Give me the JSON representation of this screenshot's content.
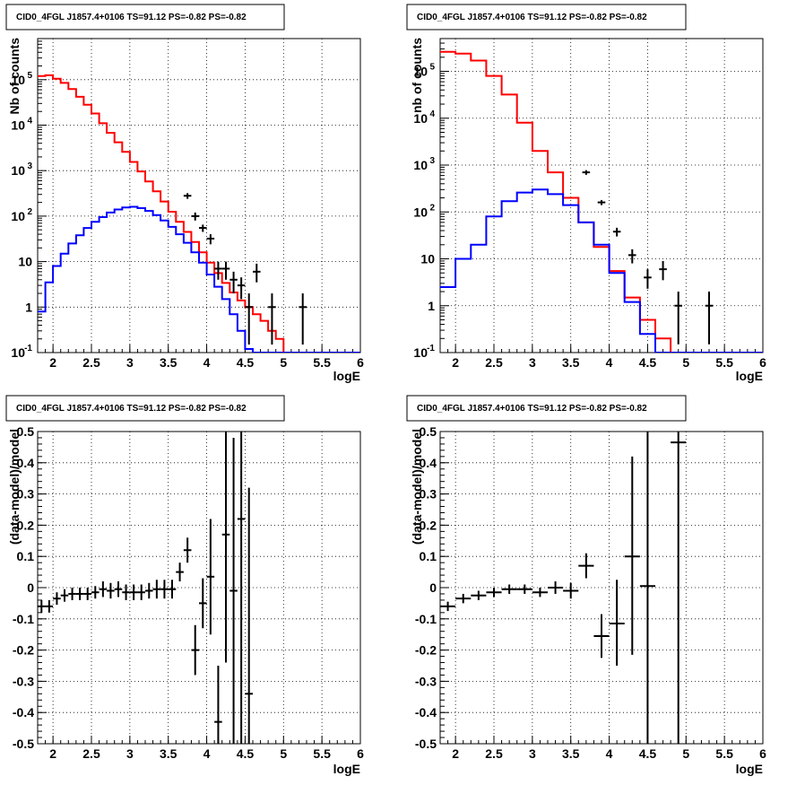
{
  "chart_data": [
    {
      "type": "line",
      "title": "CID0_4FGL J1857.4+0106 TS=91.12 PS=-0.82 PS=-0.82",
      "xlabel": "logE",
      "ylabel": "Nb of counts",
      "xlim": [
        1.8,
        6
      ],
      "ylim": [
        0.1,
        800000
      ],
      "yscale": "log",
      "grid": true,
      "xticks": [
        "2",
        "2.5",
        "3",
        "3.5",
        "4",
        "4.5",
        "5",
        "5.5",
        "6"
      ],
      "yticks": [
        {
          "v": 0.1,
          "label": "10",
          "sup": "-1"
        },
        {
          "v": 1,
          "label": "1"
        },
        {
          "v": 10,
          "label": "10"
        },
        {
          "v": 100,
          "label": "10",
          "sup": "2"
        },
        {
          "v": 1000,
          "label": "10",
          "sup": "3"
        },
        {
          "v": 10000,
          "label": "10",
          "sup": "4"
        },
        {
          "v": 100000,
          "label": "10",
          "sup": "5"
        }
      ],
      "bin_edges": [
        1.8,
        1.9,
        2.0,
        2.1,
        2.2,
        2.3,
        2.4,
        2.5,
        2.6,
        2.7,
        2.8,
        2.9,
        3.0,
        3.1,
        3.2,
        3.3,
        3.4,
        3.5,
        3.6,
        3.7,
        3.8,
        3.9,
        4.0,
        4.1,
        4.2,
        4.3,
        4.4,
        4.5,
        4.6,
        4.7,
        4.8,
        4.9,
        5.0,
        5.1,
        5.2,
        5.3,
        5.4,
        5.5,
        5.6,
        5.7,
        5.8,
        5.9,
        6.0
      ],
      "series": [
        {
          "color": "#ff0000",
          "values": [
            120000,
            125000,
            105000,
            85000,
            62000,
            42000,
            28000,
            18000,
            11000,
            6800,
            4200,
            2600,
            1550,
            960,
            580,
            350,
            210,
            125,
            75,
            45,
            27,
            16,
            9.5,
            5.6,
            3.4,
            2.1,
            1.4,
            1.0,
            0.7,
            0.5,
            0.3,
            0.2,
            0.1,
            0.1,
            0.1,
            0.1,
            0.1,
            0.1,
            0.1,
            0.1,
            0.1,
            0.1
          ]
        },
        {
          "color": "#0000ff",
          "values": [
            0.8,
            3.5,
            8,
            15,
            25,
            38,
            55,
            75,
            95,
            120,
            140,
            155,
            160,
            150,
            130,
            105,
            80,
            58,
            40,
            26,
            16,
            9.5,
            5.2,
            2.8,
            1.5,
            0.7,
            0.3,
            0.12,
            0.1,
            0.1,
            0.1,
            0.1,
            0.1,
            0.1,
            0.1,
            0.1,
            0.1,
            0.1,
            0.1,
            0.1,
            0.1,
            0.1
          ]
        }
      ],
      "points": {
        "x": [
          3.75,
          3.85,
          3.95,
          4.05,
          4.15,
          4.25,
          4.35,
          4.45,
          4.55,
          4.65,
          4.85,
          5.25
        ],
        "y": [
          280,
          100,
          55,
          32,
          7,
          7,
          4,
          3,
          1,
          6,
          1,
          1
        ],
        "ylo": [
          240,
          80,
          45,
          24,
          4,
          4,
          2,
          1.5,
          0.15,
          3.5,
          0.15,
          0.15
        ],
        "yhi": [
          320,
          120,
          65,
          40,
          10,
          10,
          6,
          4.5,
          2,
          9,
          2,
          2
        ]
      }
    },
    {
      "type": "line",
      "title": "CID0_4FGL J1857.4+0106 TS=91.12 PS=-0.82 PS=-0.82",
      "xlabel": "logE",
      "ylabel": "nb of counts",
      "xlim": [
        1.8,
        6
      ],
      "ylim": [
        0.1,
        500000
      ],
      "yscale": "log",
      "grid": true,
      "xticks": [
        "2",
        "2.5",
        "3",
        "3.5",
        "4",
        "4.5",
        "5",
        "5.5",
        "6"
      ],
      "yticks": [
        {
          "v": 0.1,
          "label": "10",
          "sup": "-1"
        },
        {
          "v": 1,
          "label": "1"
        },
        {
          "v": 10,
          "label": "10"
        },
        {
          "v": 100,
          "label": "10",
          "sup": "2"
        },
        {
          "v": 1000,
          "label": "10",
          "sup": "3"
        },
        {
          "v": 10000,
          "label": "10",
          "sup": "4"
        },
        {
          "v": 100000,
          "label": "10",
          "sup": "5"
        }
      ],
      "bin_edges": [
        1.8,
        2.0,
        2.2,
        2.4,
        2.6,
        2.8,
        3.0,
        3.2,
        3.4,
        3.6,
        3.8,
        4.0,
        4.2,
        4.4,
        4.6,
        4.8,
        5.0,
        5.2,
        5.4,
        5.6,
        5.8,
        6.0
      ],
      "series": [
        {
          "color": "#ff0000",
          "values": [
            260000,
            240000,
            170000,
            80000,
            32000,
            8000,
            2000,
            700,
            200,
            60,
            18,
            5.5,
            1.5,
            0.5,
            0.2,
            0.1,
            0.1,
            0.1,
            0.1,
            0.1,
            0.1
          ]
        },
        {
          "color": "#0000ff",
          "values": [
            2.5,
            10,
            20,
            80,
            170,
            260,
            300,
            240,
            140,
            60,
            20,
            5,
            1.2,
            0.25,
            0.1,
            0.1,
            0.1,
            0.1,
            0.1,
            0.1,
            0.1
          ]
        }
      ],
      "points": {
        "x": [
          3.7,
          3.9,
          4.1,
          4.3,
          4.5,
          4.7,
          4.9,
          5.3
        ],
        "y": [
          700,
          160,
          38,
          12,
          4,
          6,
          1,
          1
        ],
        "ylo": [
          620,
          140,
          30,
          8,
          2.3,
          3.5,
          0.15,
          0.15
        ],
        "yhi": [
          780,
          180,
          46,
          16,
          6,
          9,
          2,
          2
        ]
      }
    },
    {
      "type": "scatter",
      "title": "CID0_4FGL J1857.4+0106 TS=91.12 PS=-0.82 PS=-0.82",
      "xlabel": "logE",
      "ylabel": "(data-model)/model",
      "xlim": [
        1.8,
        6
      ],
      "ylim": [
        -0.5,
        0.5
      ],
      "grid": true,
      "xticks": [
        "2",
        "2.5",
        "3",
        "3.5",
        "4",
        "4.5",
        "5",
        "5.5",
        "6"
      ],
      "yticks": [
        "-0.5",
        "-0.4",
        "-0.3",
        "-0.2",
        "-0.1",
        "0",
        "0.1",
        "0.2",
        "0.3",
        "0.4",
        "0.5"
      ],
      "xerr": 0.05,
      "points": {
        "x": [
          1.85,
          1.95,
          2.05,
          2.15,
          2.25,
          2.35,
          2.45,
          2.55,
          2.65,
          2.75,
          2.85,
          2.95,
          3.05,
          3.15,
          3.25,
          3.35,
          3.45,
          3.55,
          3.65,
          3.75,
          3.85,
          3.95,
          4.05,
          4.15,
          4.25,
          4.35,
          4.45,
          4.55
        ],
        "y": [
          -0.06,
          -0.06,
          -0.035,
          -0.025,
          -0.02,
          -0.02,
          -0.02,
          -0.015,
          -0.005,
          -0.01,
          -0.005,
          -0.015,
          -0.015,
          -0.015,
          -0.01,
          -0.005,
          -0.005,
          -0.005,
          0.05,
          0.12,
          -0.2,
          -0.05,
          0.035,
          -0.43,
          0.17,
          -0.01,
          0.22,
          -0.34
        ],
        "ylo": [
          -0.08,
          -0.08,
          -0.055,
          -0.045,
          -0.04,
          -0.04,
          -0.04,
          -0.035,
          -0.03,
          -0.035,
          -0.03,
          -0.04,
          -0.04,
          -0.04,
          -0.035,
          -0.035,
          -0.035,
          -0.035,
          0.02,
          0.08,
          -0.28,
          -0.13,
          -0.15,
          -0.5,
          -0.24,
          -0.5,
          -0.5,
          -0.5
        ],
        "yhi": [
          -0.04,
          -0.04,
          -0.015,
          -0.005,
          0,
          0,
          0,
          0.005,
          0.02,
          0.015,
          0.02,
          0.01,
          0.01,
          0.01,
          0.015,
          0.025,
          0.025,
          0.025,
          0.08,
          0.16,
          -0.12,
          0.03,
          0.22,
          -0.25,
          0.5,
          0.48,
          0.5,
          0.32
        ]
      }
    },
    {
      "type": "scatter",
      "title": "CID0_4FGL J1857.4+0106 TS=91.12 PS=-0.82 PS=-0.82",
      "xlabel": "logE",
      "ylabel": "(data-model)/model",
      "xlim": [
        1.8,
        6
      ],
      "ylim": [
        -0.5,
        0.5
      ],
      "grid": true,
      "xticks": [
        "2",
        "2.5",
        "3",
        "3.5",
        "4",
        "4.5",
        "5",
        "5.5",
        "6"
      ],
      "yticks": [
        "-0.5",
        "-0.4",
        "-0.3",
        "-0.2",
        "-0.1",
        "0",
        "0.1",
        "0.2",
        "0.3",
        "0.4",
        "0.5"
      ],
      "xerr": 0.1,
      "points": {
        "x": [
          1.9,
          2.1,
          2.3,
          2.5,
          2.7,
          2.9,
          3.1,
          3.3,
          3.5,
          3.7,
          3.9,
          4.1,
          4.3,
          4.5,
          4.9
        ],
        "y": [
          -0.06,
          -0.035,
          -0.025,
          -0.015,
          -0.005,
          -0.005,
          -0.015,
          0,
          -0.01,
          0.07,
          -0.155,
          -0.115,
          0.1,
          0.005,
          0.465
        ],
        "ylo": [
          -0.075,
          -0.05,
          -0.04,
          -0.03,
          -0.02,
          -0.02,
          -0.03,
          -0.02,
          -0.035,
          0.03,
          -0.225,
          -0.25,
          -0.215,
          -0.5,
          -0.5
        ],
        "yhi": [
          -0.045,
          -0.02,
          -0.01,
          0,
          0.01,
          0.01,
          0,
          0.02,
          0.015,
          0.11,
          -0.085,
          0.025,
          0.42,
          0.5,
          0.5
        ]
      }
    }
  ]
}
